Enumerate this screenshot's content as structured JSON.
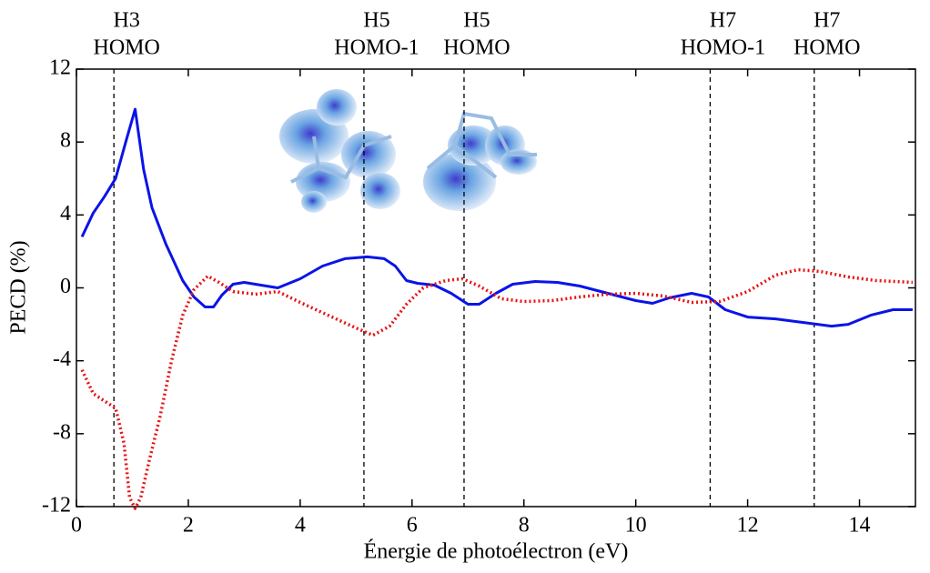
{
  "chart_data": {
    "type": "line",
    "xlabel": "Énergie de photoélectron (eV)",
    "ylabel": "PECD (%)",
    "xlim": [
      0,
      15
    ],
    "ylim": [
      -12,
      12
    ],
    "xticks": [
      0,
      2,
      4,
      6,
      8,
      10,
      12,
      14
    ],
    "yticks": [
      -12,
      -8,
      -4,
      0,
      4,
      8,
      12
    ],
    "annotations": [
      {
        "x": 0.67,
        "label": [
          "H3",
          "HOMO"
        ]
      },
      {
        "x": 5.14,
        "label": [
          "H5",
          "HOMO-1"
        ]
      },
      {
        "x": 6.93,
        "label": [
          "H5",
          "HOMO"
        ]
      },
      {
        "x": 11.33,
        "label": [
          "H7",
          "HOMO-1"
        ]
      },
      {
        "x": 13.19,
        "label": [
          "H7",
          "HOMO"
        ]
      }
    ],
    "series": [
      {
        "color": "#0a14e6",
        "style": "solid",
        "x": [
          0.1,
          0.3,
          0.5,
          0.7,
          0.9,
          1.05,
          1.2,
          1.35,
          1.6,
          1.9,
          2.1,
          2.3,
          2.45,
          2.6,
          2.8,
          3.0,
          3.3,
          3.6,
          4.0,
          4.4,
          4.8,
          5.2,
          5.5,
          5.7,
          5.9,
          6.1,
          6.4,
          6.7,
          7.0,
          7.2,
          7.5,
          7.8,
          8.2,
          8.6,
          9.0,
          9.5,
          10.0,
          10.3,
          10.6,
          11.0,
          11.3,
          11.6,
          12.0,
          12.5,
          13.0,
          13.5,
          13.8,
          14.2,
          14.6,
          14.95
        ],
        "values": [
          2.8,
          4.1,
          5.0,
          6.0,
          8.2,
          9.8,
          6.5,
          4.4,
          2.4,
          0.4,
          -0.5,
          -1.05,
          -1.05,
          -0.4,
          0.2,
          0.3,
          0.15,
          0.0,
          0.5,
          1.2,
          1.6,
          1.7,
          1.6,
          1.2,
          0.4,
          0.25,
          0.15,
          -0.3,
          -0.9,
          -0.9,
          -0.3,
          0.2,
          0.35,
          0.3,
          0.1,
          -0.3,
          -0.7,
          -0.85,
          -0.55,
          -0.3,
          -0.5,
          -1.2,
          -1.6,
          -1.7,
          -1.9,
          -2.1,
          -2.0,
          -1.5,
          -1.2,
          -1.2
        ]
      },
      {
        "color": "#e61414",
        "style": "dotted",
        "x": [
          0.1,
          0.3,
          0.5,
          0.7,
          0.85,
          0.95,
          1.05,
          1.15,
          1.3,
          1.5,
          1.7,
          1.9,
          2.1,
          2.35,
          2.55,
          2.8,
          3.2,
          3.6,
          4.0,
          4.5,
          5.0,
          5.3,
          5.6,
          5.9,
          6.2,
          6.6,
          6.9,
          7.2,
          7.6,
          8.0,
          8.5,
          9.0,
          9.5,
          10.0,
          10.5,
          11.0,
          11.5,
          12.0,
          12.5,
          12.9,
          13.3,
          13.8,
          14.3,
          14.95
        ],
        "values": [
          -4.5,
          -5.8,
          -6.2,
          -6.6,
          -8.5,
          -11.5,
          -12.1,
          -11.5,
          -9.5,
          -7.0,
          -4.0,
          -1.5,
          -0.1,
          0.65,
          0.3,
          -0.2,
          -0.35,
          -0.2,
          -0.8,
          -1.5,
          -2.2,
          -2.6,
          -2.1,
          -0.9,
          0.0,
          0.4,
          0.5,
          0.1,
          -0.6,
          -0.75,
          -0.7,
          -0.5,
          -0.35,
          -0.3,
          -0.45,
          -0.8,
          -0.75,
          -0.2,
          0.7,
          1.0,
          0.9,
          0.6,
          0.4,
          0.3
        ]
      }
    ]
  }
}
